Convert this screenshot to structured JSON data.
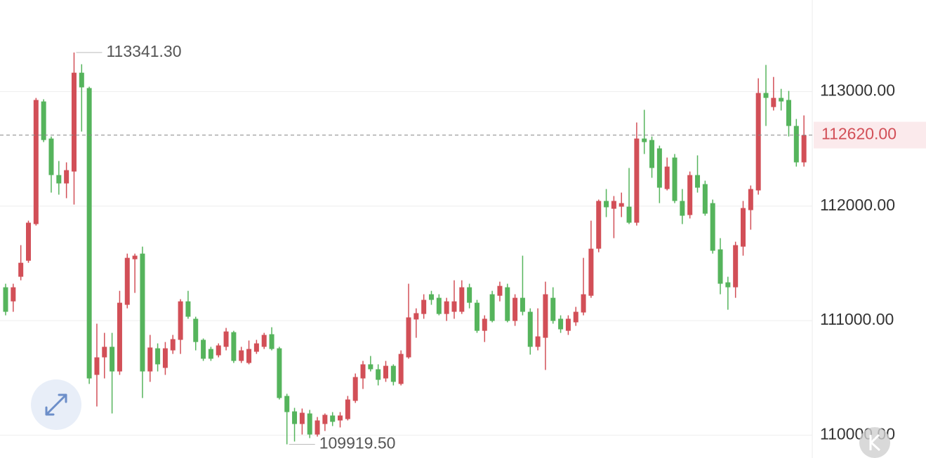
{
  "chart_data": {
    "type": "candlestick",
    "open": [
      111291,
      111168,
      111383,
      111523,
      111843,
      112914,
      112590,
      112271,
      112198,
      112302,
      113165,
      113031,
      110526,
      110679,
      110771,
      110556,
      111138,
      111536,
      111585,
      110556,
      110758,
      110587,
      110740,
      110832,
      111168,
      111016,
      110832,
      110752,
      110697,
      110771,
      110899,
      110648,
      110630,
      110728,
      110771,
      110881,
      110758,
      110342,
      110207,
      110097,
      110189,
      110005,
      110097,
      110171,
      110128,
      110140,
      110299,
      110495,
      110618,
      110575,
      110495,
      110605,
      110447,
      110679,
      111010,
      111058,
      111230,
      111199,
      111058,
      111077,
      111077,
      111291,
      111156,
      110911,
      111230,
      111217,
      111291,
      110997,
      111199,
      111077,
      110771,
      110850,
      111199,
      111016,
      110911,
      110985,
      111071,
      111217,
      111628,
      112045,
      111977,
      111995,
      111995,
      111855,
      112590,
      112577,
      112504,
      112149,
      112424,
      112045,
      111922,
      112271,
      112192,
      112026,
      111622,
      111334,
      111291,
      111646,
      111965,
      112137,
      112988,
      112865,
      112945,
      112927,
      112700,
      112382
    ],
    "high": [
      111322,
      111322,
      111659,
      111873,
      112945,
      112933,
      112608,
      112394,
      112382,
      113341.3,
      113239,
      113043,
      110973,
      110893,
      110893,
      111260,
      111585,
      111585,
      111646,
      110875,
      110801,
      110813,
      110875,
      111187,
      111260,
      111034,
      110844,
      110771,
      110801,
      110936,
      110911,
      110771,
      110826,
      110832,
      110893,
      110942,
      110771,
      110361,
      110238,
      110232,
      110220,
      110158,
      110189,
      110201,
      110201,
      110342,
      110538,
      110648,
      110691,
      110618,
      110648,
      110618,
      110740,
      111322,
      111107,
      111230,
      111260,
      111230,
      111199,
      111352,
      111352,
      111322,
      111181,
      111046,
      111260,
      111340,
      111322,
      111230,
      111567,
      111107,
      111107,
      111340,
      111291,
      111046,
      111046,
      111120,
      111548,
      111873,
      112057,
      112149,
      112088,
      112118,
      112333,
      112730,
      112841,
      112608,
      112528,
      112424,
      112455,
      112149,
      112302,
      112443,
      112222,
      112057,
      111720,
      111383,
      111689,
      112045,
      112180,
      113116,
      113233,
      113128,
      113024,
      113006,
      112761,
      112792
    ],
    "low": [
      111046,
      111077,
      111352,
      111505,
      111830,
      112559,
      112118,
      112100,
      112069,
      112014,
      112651,
      110447,
      110250,
      110495,
      110189,
      110526,
      111107,
      111242,
      110324,
      110465,
      110556,
      110526,
      110709,
      110709,
      111016,
      110740,
      110648,
      110648,
      110679,
      110740,
      110630,
      110630,
      110618,
      110709,
      110752,
      110740,
      110311,
      109919.5,
      109944,
      110005,
      109974,
      109987,
      110036,
      110079,
      110067,
      110128,
      110281,
      110403,
      110556,
      110434,
      110465,
      110434,
      110434,
      110667,
      110850,
      111016,
      111138,
      111046,
      110997,
      111016,
      111058,
      111107,
      110893,
      110813,
      110985,
      111168,
      110985,
      110954,
      111046,
      110703,
      110740,
      110569,
      110973,
      110893,
      110875,
      110954,
      111046,
      111199,
      111597,
      111904,
      111720,
      111904,
      111843,
      111830,
      112455,
      112247,
      112026,
      112137,
      112026,
      111843,
      111892,
      112118,
      111916,
      111585,
      111230,
      111095,
      111199,
      111567,
      111794,
      112100,
      112700,
      112835,
      112835,
      112608,
      112345,
      112345
    ],
    "close": [
      111077,
      111291,
      111505,
      111855,
      112927,
      112577,
      112271,
      112198,
      112314,
      113165,
      113037,
      110495,
      110679,
      110771,
      110556,
      111156,
      111548,
      111567,
      110556,
      110765,
      110618,
      110758,
      110838,
      111168,
      111034,
      110813,
      110667,
      110667,
      110783,
      110905,
      110648,
      110740,
      110752,
      110801,
      110875,
      110752,
      110324,
      110201,
      110097,
      110195,
      110005,
      110128,
      110177,
      110116,
      110171,
      110311,
      110507,
      110618,
      110575,
      110483,
      110605,
      110465,
      110709,
      111028,
      111065,
      111181,
      111181,
      111058,
      111168,
      111168,
      111291,
      111156,
      110911,
      111016,
      110997,
      111303,
      110997,
      111199,
      111077,
      110771,
      110862,
      111230,
      110997,
      110924,
      111016,
      111077,
      111230,
      111628,
      112045,
      111990,
      112045,
      112026,
      111855,
      112590,
      112559,
      112333,
      112161,
      112345,
      112045,
      111916,
      112271,
      112161,
      111934,
      111610,
      111322,
      111291,
      111659,
      111983,
      112149,
      112988,
      112945,
      112945,
      112914,
      112700,
      112382,
      112620
    ],
    "up_color": "#d24f57",
    "down_color": "#55b45c",
    "ylim": [
      109800,
      113800
    ],
    "yticks": [
      {
        "value": 110000,
        "label": "110000.00"
      },
      {
        "value": 111000,
        "label": "111000.00"
      },
      {
        "value": 112000,
        "label": "112000.00"
      },
      {
        "value": 113000,
        "label": "113000.00"
      }
    ],
    "grid": true,
    "last_price": {
      "value": 112620,
      "label": "112620.00"
    },
    "high_marker": {
      "value": 113341.3,
      "label": "113341.30"
    },
    "low_marker": {
      "value": 109919.5,
      "label": "109919.50"
    }
  }
}
